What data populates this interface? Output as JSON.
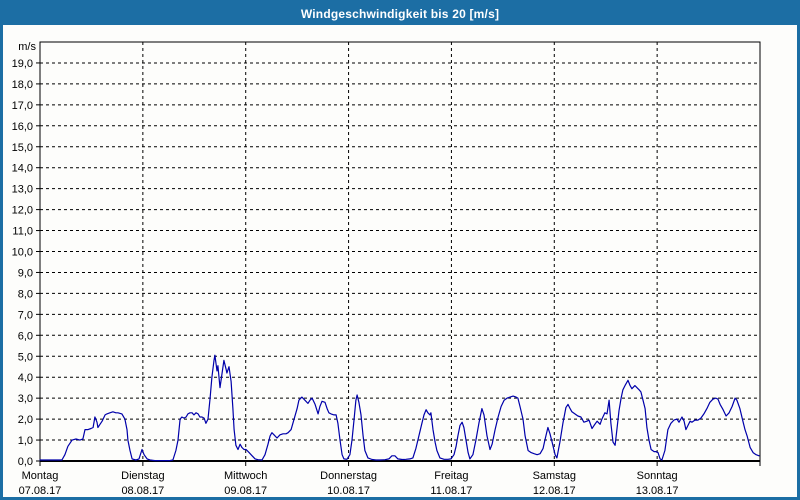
{
  "header": {
    "title": "Windgeschwindigkeit bis 20 [m/s]"
  },
  "colors": {
    "frame": "#1C6EA4",
    "titlebar": "#1C6EA4",
    "title_text": "#FFFFFF",
    "plot_background": "#FDFDFB",
    "grid": "#000000",
    "axis": "#000000",
    "line": "#0000AA",
    "label_text": "#000000"
  },
  "chart_data": {
    "type": "line",
    "title": "Windgeschwindigkeit bis 20 [m/s]",
    "unit_label": "m/s",
    "ylim": [
      0,
      20
    ],
    "ytick_step": 1.0,
    "ytick_labels": [
      "0,0",
      "1,0",
      "2,0",
      "3,0",
      "4,0",
      "5,0",
      "6,0",
      "7,0",
      "8,0",
      "9,0",
      "10,0",
      "11,0",
      "12,0",
      "13,0",
      "14,0",
      "15,0",
      "16,0",
      "17,0",
      "18,0",
      "19,0"
    ],
    "grid": "dashed",
    "x_total_hours": 168,
    "x_days": [
      {
        "name": "Montag",
        "date": "07.08.17"
      },
      {
        "name": "Dienstag",
        "date": "08.08.17"
      },
      {
        "name": "Mittwoch",
        "date": "09.08.17"
      },
      {
        "name": "Donnerstag",
        "date": "10.08.17"
      },
      {
        "name": "Freitag",
        "date": "11.08.17"
      },
      {
        "name": "Samstag",
        "date": "12.08.17"
      },
      {
        "name": "Sonntag",
        "date": "13.08.17"
      }
    ],
    "series": [
      {
        "name": "Windgeschwindigkeit",
        "unit": "m/s",
        "points_hours_value": [
          [
            0,
            0.05
          ],
          [
            2.3,
            0.05
          ],
          [
            5.1,
            0.05
          ],
          [
            5.8,
            0.3
          ],
          [
            6.5,
            0.7
          ],
          [
            7.5,
            1.0
          ],
          [
            8.4,
            1.05
          ],
          [
            9.3,
            1.0
          ],
          [
            10,
            1.05
          ],
          [
            10.5,
            1.5
          ],
          [
            11.2,
            1.5
          ],
          [
            11.9,
            1.55
          ],
          [
            12.4,
            1.6
          ],
          [
            12.8,
            2.1
          ],
          [
            13.3,
            1.85
          ],
          [
            13.5,
            1.6
          ],
          [
            14,
            1.75
          ],
          [
            14.5,
            1.9
          ],
          [
            15.2,
            2.2
          ],
          [
            15.6,
            2.25
          ],
          [
            16.3,
            2.3
          ],
          [
            17,
            2.35
          ],
          [
            17.7,
            2.3
          ],
          [
            18.2,
            2.3
          ],
          [
            19.1,
            2.25
          ],
          [
            19.8,
            2.0
          ],
          [
            20.3,
            1.5
          ],
          [
            20.5,
            1.0
          ],
          [
            21,
            0.5
          ],
          [
            21.5,
            0.1
          ],
          [
            22.4,
            0.05
          ],
          [
            23.1,
            0.1
          ],
          [
            23.8,
            0.55
          ],
          [
            24.3,
            0.3
          ],
          [
            25,
            0.1
          ],
          [
            25.7,
            0.05
          ],
          [
            26.8,
            0.02
          ],
          [
            28,
            0.02
          ],
          [
            29.2,
            0.02
          ],
          [
            30.3,
            0.02
          ],
          [
            31,
            0.05
          ],
          [
            31.7,
            0.5
          ],
          [
            32.2,
            1.0
          ],
          [
            32.7,
            2.0
          ],
          [
            33.1,
            2.1
          ],
          [
            33.6,
            2.05
          ],
          [
            34.1,
            2.1
          ],
          [
            34.5,
            2.25
          ],
          [
            35,
            2.3
          ],
          [
            35.5,
            2.3
          ],
          [
            35.9,
            2.2
          ],
          [
            36.4,
            2.3
          ],
          [
            36.9,
            2.25
          ],
          [
            37.3,
            2.1
          ],
          [
            37.8,
            2.1
          ],
          [
            38.3,
            2.05
          ],
          [
            38.7,
            1.8
          ],
          [
            39.2,
            2.0
          ],
          [
            39.7,
            3.0
          ],
          [
            40.1,
            4.0
          ],
          [
            40.6,
            4.8
          ],
          [
            40.8,
            5.05
          ],
          [
            41.3,
            4.3
          ],
          [
            41.5,
            4.55
          ],
          [
            42,
            3.5
          ],
          [
            42.5,
            4.2
          ],
          [
            42.9,
            4.8
          ],
          [
            43.4,
            4.4
          ],
          [
            43.6,
            4.2
          ],
          [
            44.1,
            4.5
          ],
          [
            44.6,
            3.8
          ],
          [
            45,
            2.5
          ],
          [
            45.3,
            1.5
          ],
          [
            45.7,
            0.75
          ],
          [
            46.2,
            0.55
          ],
          [
            46.7,
            0.8
          ],
          [
            47.1,
            0.65
          ],
          [
            47.6,
            0.55
          ],
          [
            48.1,
            0.55
          ],
          [
            48.8,
            0.4
          ],
          [
            49.5,
            0.25
          ],
          [
            50.2,
            0.1
          ],
          [
            50.9,
            0.06
          ],
          [
            51.8,
            0.05
          ],
          [
            52.5,
            0.3
          ],
          [
            53.2,
            0.8
          ],
          [
            53.7,
            1.2
          ],
          [
            54.1,
            1.35
          ],
          [
            54.6,
            1.25
          ],
          [
            55.3,
            1.1
          ],
          [
            56,
            1.25
          ],
          [
            56.7,
            1.3
          ],
          [
            57.4,
            1.3
          ],
          [
            57.9,
            1.35
          ],
          [
            58.6,
            1.5
          ],
          [
            59.3,
            2.0
          ],
          [
            60,
            2.5
          ],
          [
            60.4,
            2.9
          ],
          [
            61.1,
            3.05
          ],
          [
            61.8,
            2.9
          ],
          [
            62.5,
            2.75
          ],
          [
            63,
            2.9
          ],
          [
            63.5,
            3.0
          ],
          [
            64.2,
            2.7
          ],
          [
            64.9,
            2.25
          ],
          [
            65.3,
            2.6
          ],
          [
            65.8,
            2.85
          ],
          [
            66.5,
            2.8
          ],
          [
            67,
            2.5
          ],
          [
            67.4,
            2.3
          ],
          [
            67.9,
            2.25
          ],
          [
            68.6,
            2.2
          ],
          [
            69.1,
            2.2
          ],
          [
            69.5,
            1.8
          ],
          [
            70,
            1.0
          ],
          [
            70.5,
            0.3
          ],
          [
            70.9,
            0.1
          ],
          [
            71.6,
            0.08
          ],
          [
            72.3,
            0.3
          ],
          [
            72.8,
            1.0
          ],
          [
            73.3,
            2.0
          ],
          [
            73.7,
            2.9
          ],
          [
            74,
            3.15
          ],
          [
            74.4,
            2.8
          ],
          [
            74.9,
            2.2
          ],
          [
            75.4,
            1.2
          ],
          [
            75.8,
            0.5
          ],
          [
            76.5,
            0.15
          ],
          [
            77.5,
            0.07
          ],
          [
            78.4,
            0.05
          ],
          [
            79.3,
            0.05
          ],
          [
            80.5,
            0.06
          ],
          [
            81.4,
            0.1
          ],
          [
            82.1,
            0.25
          ],
          [
            82.8,
            0.25
          ],
          [
            83.5,
            0.1
          ],
          [
            84.5,
            0.07
          ],
          [
            85.4,
            0.08
          ],
          [
            86.3,
            0.1
          ],
          [
            87,
            0.15
          ],
          [
            87.7,
            0.6
          ],
          [
            88.4,
            1.2
          ],
          [
            89.1,
            1.8
          ],
          [
            89.6,
            2.2
          ],
          [
            90.1,
            2.45
          ],
          [
            90.5,
            2.3
          ],
          [
            91,
            2.2
          ],
          [
            91.2,
            2.3
          ],
          [
            91.7,
            1.5
          ],
          [
            92.2,
            0.9
          ],
          [
            92.6,
            0.5
          ],
          [
            93.3,
            0.15
          ],
          [
            94.3,
            0.08
          ],
          [
            95.2,
            0.08
          ],
          [
            95.9,
            0.1
          ],
          [
            96.6,
            0.3
          ],
          [
            97.1,
            0.7
          ],
          [
            97.5,
            1.2
          ],
          [
            98,
            1.7
          ],
          [
            98.5,
            1.85
          ],
          [
            98.9,
            1.6
          ],
          [
            99.4,
            1.0
          ],
          [
            99.9,
            0.4
          ],
          [
            100.3,
            0.1
          ],
          [
            101,
            0.3
          ],
          [
            101.7,
            1.0
          ],
          [
            102.4,
            1.8
          ],
          [
            103.1,
            2.5
          ],
          [
            103.6,
            2.2
          ],
          [
            103.8,
            1.9
          ],
          [
            104.3,
            1.2
          ],
          [
            105,
            0.55
          ],
          [
            105.5,
            0.8
          ],
          [
            106.2,
            1.5
          ],
          [
            106.9,
            2.1
          ],
          [
            107.6,
            2.6
          ],
          [
            108.3,
            2.9
          ],
          [
            109,
            3.0
          ],
          [
            109.7,
            3.05
          ],
          [
            110.4,
            3.1
          ],
          [
            111.1,
            3.05
          ],
          [
            111.5,
            3.0
          ],
          [
            112,
            2.6
          ],
          [
            112.7,
            2.0
          ],
          [
            113.2,
            1.2
          ],
          [
            113.9,
            0.5
          ],
          [
            114.6,
            0.4
          ],
          [
            115.3,
            0.35
          ],
          [
            116,
            0.3
          ],
          [
            116.7,
            0.35
          ],
          [
            117.4,
            0.6
          ],
          [
            117.8,
            1.0
          ],
          [
            118.5,
            1.6
          ],
          [
            119,
            1.3
          ],
          [
            119.5,
            0.9
          ],
          [
            120.2,
            0.3
          ],
          [
            120.6,
            0.15
          ],
          [
            121.3,
            0.9
          ],
          [
            122,
            1.8
          ],
          [
            122.7,
            2.55
          ],
          [
            123.2,
            2.7
          ],
          [
            123.7,
            2.5
          ],
          [
            124.1,
            2.35
          ],
          [
            124.8,
            2.25
          ],
          [
            125.5,
            2.15
          ],
          [
            126.2,
            2.1
          ],
          [
            126.9,
            1.85
          ],
          [
            127.6,
            1.9
          ],
          [
            128.1,
            1.95
          ],
          [
            128.8,
            1.55
          ],
          [
            129.3,
            1.7
          ],
          [
            130,
            1.9
          ],
          [
            130.7,
            1.75
          ],
          [
            131.1,
            2.0
          ],
          [
            131.8,
            2.3
          ],
          [
            132.3,
            2.25
          ],
          [
            132.8,
            2.9
          ],
          [
            133.2,
            1.8
          ],
          [
            133.7,
            0.9
          ],
          [
            134.2,
            0.75
          ],
          [
            134.6,
            1.5
          ],
          [
            135.1,
            2.4
          ],
          [
            135.6,
            3.0
          ],
          [
            136,
            3.4
          ],
          [
            136.5,
            3.6
          ],
          [
            137.2,
            3.85
          ],
          [
            137.7,
            3.6
          ],
          [
            138.1,
            3.45
          ],
          [
            138.8,
            3.6
          ],
          [
            139.3,
            3.5
          ],
          [
            139.8,
            3.4
          ],
          [
            140.2,
            3.3
          ],
          [
            140.7,
            2.9
          ],
          [
            141.2,
            2.5
          ],
          [
            141.6,
            1.6
          ],
          [
            142.1,
            1.0
          ],
          [
            142.6,
            0.55
          ],
          [
            143.3,
            0.45
          ],
          [
            143.7,
            0.45
          ],
          [
            144.2,
            0.4
          ],
          [
            144.7,
            0.1
          ],
          [
            145.1,
            0.05
          ],
          [
            145.8,
            0.5
          ],
          [
            146.5,
            1.5
          ],
          [
            147.2,
            1.8
          ],
          [
            147.9,
            1.95
          ],
          [
            148.6,
            2.0
          ],
          [
            149.1,
            1.85
          ],
          [
            149.8,
            2.1
          ],
          [
            150.3,
            1.9
          ],
          [
            150.7,
            1.5
          ],
          [
            151.2,
            1.7
          ],
          [
            151.7,
            1.9
          ],
          [
            152.1,
            1.85
          ],
          [
            152.8,
            1.95
          ],
          [
            153.5,
            1.95
          ],
          [
            154.2,
            2.05
          ],
          [
            154.9,
            2.25
          ],
          [
            155.6,
            2.5
          ],
          [
            156.3,
            2.8
          ],
          [
            157,
            2.95
          ],
          [
            157.7,
            3.0
          ],
          [
            158.2,
            2.95
          ],
          [
            158.7,
            2.7
          ],
          [
            159.4,
            2.45
          ],
          [
            160.1,
            2.15
          ],
          [
            160.8,
            2.3
          ],
          [
            161.5,
            2.6
          ],
          [
            162.2,
            3.0
          ],
          [
            162.6,
            2.9
          ],
          [
            163.3,
            2.5
          ],
          [
            164,
            1.9
          ],
          [
            164.5,
            1.5
          ],
          [
            165,
            1.2
          ],
          [
            165.7,
            0.65
          ],
          [
            166.4,
            0.4
          ],
          [
            167.1,
            0.3
          ],
          [
            167.8,
            0.25
          ]
        ]
      }
    ]
  }
}
